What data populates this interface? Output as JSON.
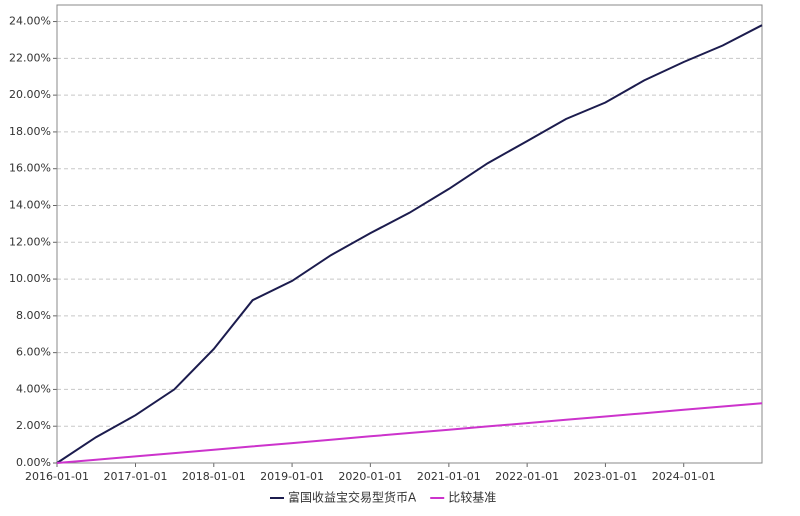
{
  "chart_data": {
    "type": "line",
    "x": [
      "2016-01-01",
      "2016-07-01",
      "2017-01-01",
      "2017-07-01",
      "2018-01-01",
      "2018-07-01",
      "2019-01-01",
      "2019-07-01",
      "2020-01-01",
      "2020-07-01",
      "2021-01-01",
      "2021-07-01",
      "2022-01-01",
      "2022-07-01",
      "2023-01-01",
      "2023-07-01",
      "2024-01-01",
      "2024-07-01",
      "2024-12-31"
    ],
    "series": [
      {
        "name": "富国收益宝交易型货币A",
        "color": "#1c1c4e",
        "values": [
          0,
          1.4,
          2.6,
          4.0,
          6.2,
          8.85,
          9.9,
          11.3,
          12.5,
          13.6,
          14.9,
          16.3,
          17.5,
          18.7,
          19.6,
          20.8,
          21.8,
          22.7,
          23.8
        ]
      },
      {
        "name": "比较基准",
        "color": "#cc33cc",
        "values": [
          0,
          0.18,
          0.36,
          0.54,
          0.72,
          0.9,
          1.08,
          1.26,
          1.45,
          1.63,
          1.81,
          1.99,
          2.17,
          2.35,
          2.53,
          2.71,
          2.89,
          3.07,
          3.25
        ]
      }
    ],
    "ylim": [
      0,
      24.9
    ],
    "yticks": [
      {
        "value": 0,
        "label": "0.00%"
      },
      {
        "value": 2,
        "label": "2.00%"
      },
      {
        "value": 4,
        "label": "4.00%"
      },
      {
        "value": 6,
        "label": "6.00%"
      },
      {
        "value": 8,
        "label": "8.00%"
      },
      {
        "value": 10,
        "label": "10.00%"
      },
      {
        "value": 12,
        "label": "12.00%"
      },
      {
        "value": 14,
        "label": "14.00%"
      },
      {
        "value": 16,
        "label": "16.00%"
      },
      {
        "value": 18,
        "label": "18.00%"
      },
      {
        "value": 20,
        "label": "20.00%"
      },
      {
        "value": 22,
        "label": "22.00%"
      },
      {
        "value": 24,
        "label": "24.00%"
      }
    ],
    "xlim": [
      "2016-01-01",
      "2024-12-31"
    ],
    "xticks": [
      "2016-01-01",
      "2017-01-01",
      "2018-01-01",
      "2019-01-01",
      "2020-01-01",
      "2021-01-01",
      "2022-01-01",
      "2023-01-01",
      "2024-01-01"
    ],
    "grid": true
  }
}
